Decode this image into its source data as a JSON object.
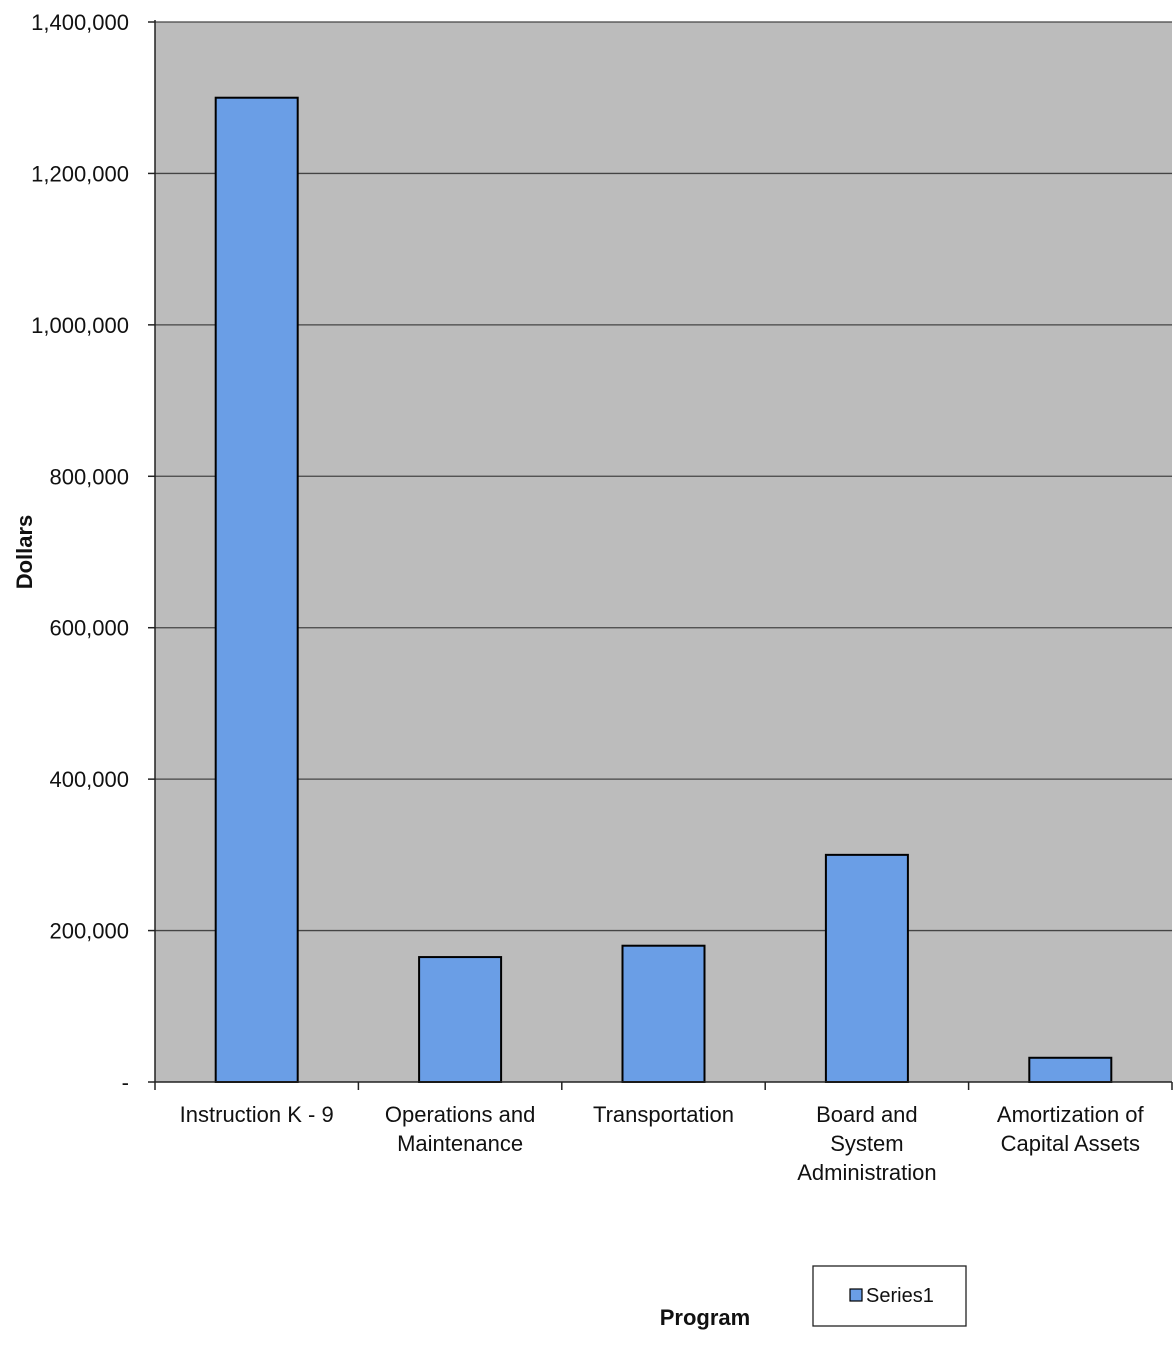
{
  "chart_data": {
    "type": "bar",
    "categories": [
      "Instruction K - 9",
      "Operations and Maintenance",
      "Transportation",
      "Board and System Administration",
      "Amortization of Capital Assets"
    ],
    "category_lines": [
      [
        "Instruction K - 9"
      ],
      [
        "Operations and",
        "Maintenance"
      ],
      [
        "Transportation"
      ],
      [
        "Board and",
        "System",
        "Administration"
      ],
      [
        "Amortization of",
        "Capital Assets"
      ]
    ],
    "series": [
      {
        "name": "Series1",
        "values": [
          1300000,
          165000,
          180000,
          300000,
          32000
        ]
      }
    ],
    "ylim": [
      0,
      1400000
    ],
    "yticks": [
      0,
      200000,
      400000,
      600000,
      800000,
      1000000,
      1200000,
      1400000
    ],
    "ytick_labels": [
      "-",
      "200,000",
      "400,000",
      "600,000",
      "800,000",
      "1,000,000",
      "1,200,000",
      "1,400,000"
    ],
    "xlabel": "Program",
    "ylabel": "Dollars",
    "grid": true,
    "legend": "bottom-right",
    "colors": {
      "bar": "#6a9ee6",
      "bar_stroke": "#000000",
      "plot_bg": "#bcbcbc",
      "gridline": "#444444"
    }
  }
}
